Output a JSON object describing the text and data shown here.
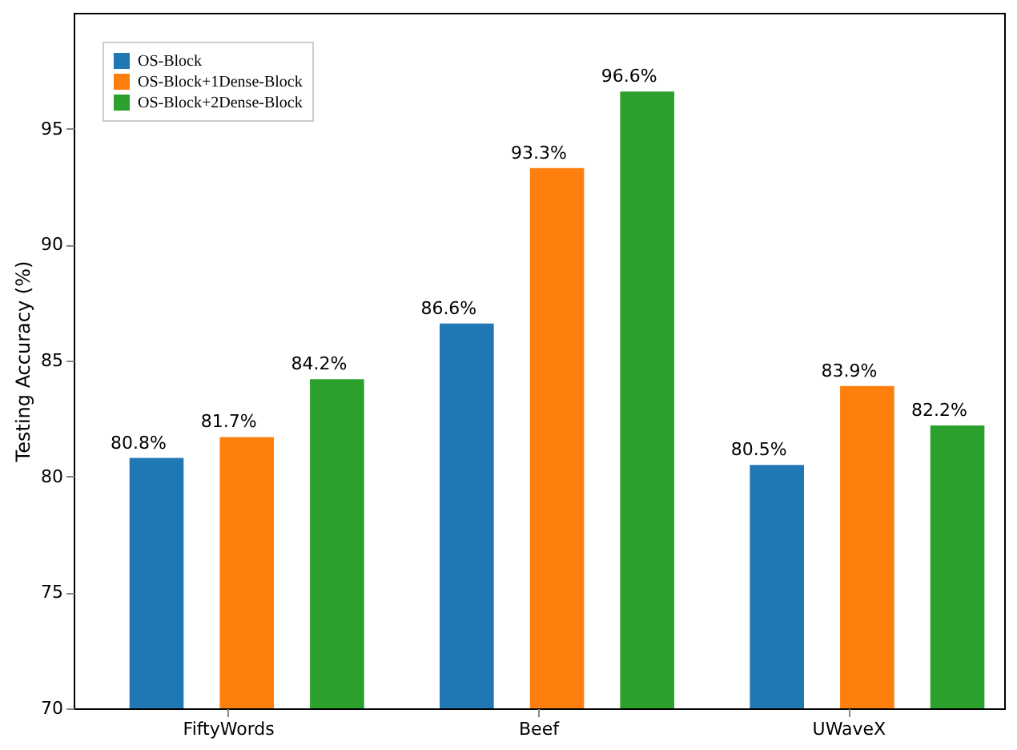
{
  "chart_data": {
    "type": "bar",
    "ylabel": "Testing Accuracy (%)",
    "categories": [
      "FiftyWords",
      "Beef",
      "UWaveX"
    ],
    "series": [
      {
        "name": "OS-Block",
        "color": "#1f77b4",
        "values": [
          80.8,
          86.6,
          80.5
        ],
        "value_labels": [
          "80.8%",
          "86.6%",
          "80.5%"
        ]
      },
      {
        "name": "OS-Block+1Dense-Block",
        "color": "#ff7f0e",
        "values": [
          81.7,
          93.3,
          83.9
        ],
        "value_labels": [
          "81.7%",
          "93.3%",
          "83.9%"
        ]
      },
      {
        "name": "OS-Block+2Dense-Block",
        "color": "#2ca02c",
        "values": [
          84.2,
          96.6,
          82.2
        ],
        "value_labels": [
          "84.2%",
          "96.6%",
          "82.2%"
        ]
      }
    ],
    "ylim": [
      70,
      100
    ],
    "yticks": [
      70,
      75,
      80,
      85,
      90,
      95
    ],
    "grid": false,
    "legend": "top left"
  }
}
